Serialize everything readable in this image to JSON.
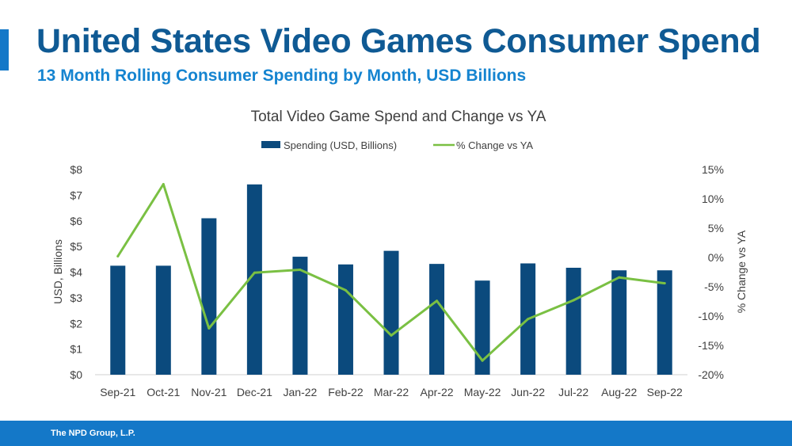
{
  "header": {
    "title": "United States Video Games Consumer Spend",
    "subtitle": "13 Month Rolling Consumer Spending by Month, USD Billions"
  },
  "footer": {
    "text": "The NPD Group, L.P."
  },
  "colors": {
    "accent": "#1478c8",
    "title": "#0f5a94",
    "bar": "#0b4a7d",
    "line": "#7ac043"
  },
  "chart_data": {
    "type": "bar",
    "title": "Total Video Game Spend and Change vs YA",
    "categories": [
      "Sep-21",
      "Oct-21",
      "Nov-21",
      "Dec-21",
      "Jan-22",
      "Feb-22",
      "Mar-22",
      "Apr-22",
      "May-22",
      "Jun-22",
      "Jul-22",
      "Aug-22",
      "Sep-22"
    ],
    "series": [
      {
        "name": "Spending (USD, Billions)",
        "type": "bar",
        "axis": "left",
        "values": [
          4.25,
          4.25,
          6.1,
          7.42,
          4.6,
          4.3,
          4.83,
          4.32,
          3.67,
          4.34,
          4.17,
          4.07,
          4.07
        ]
      },
      {
        "name": "% Change vs YA",
        "type": "line",
        "axis": "right",
        "values": [
          0.2,
          12.5,
          -12.1,
          -2.6,
          -2.1,
          -5.6,
          -13.3,
          -7.4,
          -17.6,
          -10.5,
          -7.3,
          -3.4,
          -4.4
        ]
      }
    ],
    "ylabel": "USD, Billions",
    "y2label": "% Change vs YA",
    "ylim": [
      0,
      8
    ],
    "y2lim": [
      -20,
      15
    ],
    "yticks": [
      "$0",
      "$1",
      "$2",
      "$3",
      "$4",
      "$5",
      "$6",
      "$7",
      "$8"
    ],
    "y2ticks": [
      "-20%",
      "-15%",
      "-10%",
      "-5%",
      "0%",
      "5%",
      "10%",
      "15%"
    ],
    "legend_position": "top-center",
    "grid": false
  }
}
